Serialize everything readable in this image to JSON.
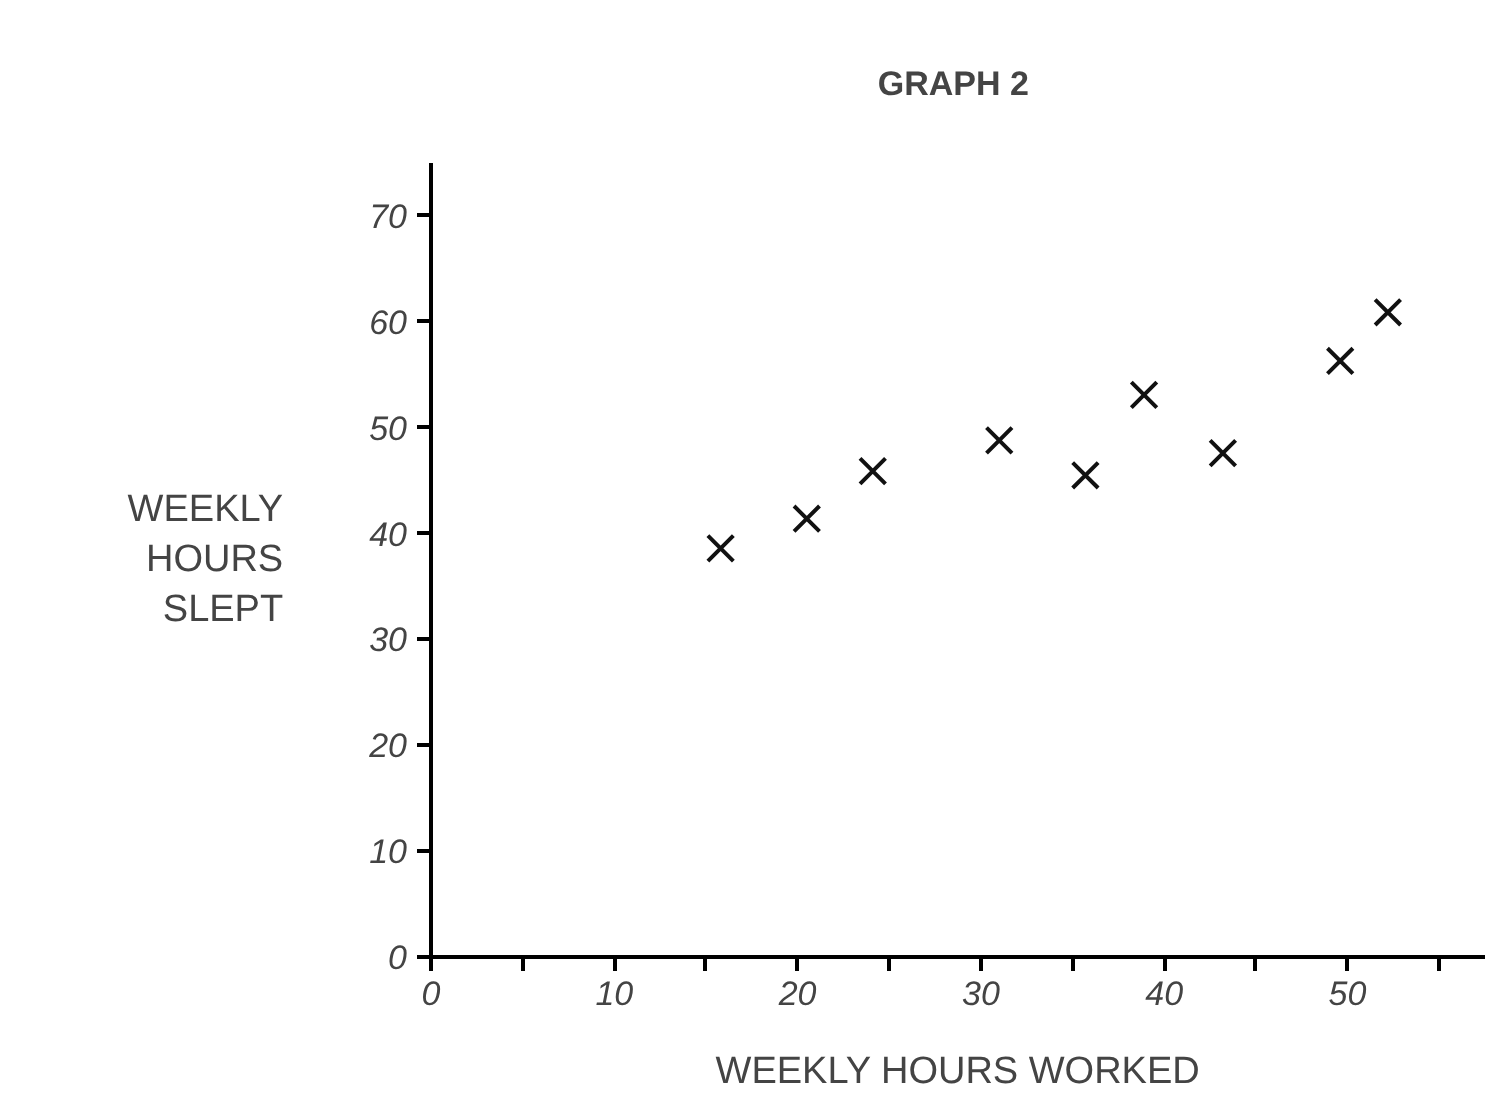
{
  "chart_data": {
    "type": "scatter",
    "title": "GRAPH  2",
    "xlabel": "WEEKLY HOURS WORKED",
    "ylabel": "WEEKLY\nHOURS\nSLEPT",
    "x": [
      15.8,
      20.5,
      24.1,
      31.0,
      35.7,
      38.9,
      43.2,
      49.6,
      52.2
    ],
    "values": [
      38.6,
      41.4,
      45.9,
      48.8,
      45.5,
      53.1,
      47.6,
      56.3,
      60.9
    ],
    "color": "#111111",
    "marker": "cross",
    "xlim": [
      0,
      57.5
    ],
    "ylim": [
      0,
      75
    ],
    "xticks": [
      0,
      {
        "value": 5,
        "label": null
      },
      10,
      {
        "value": 15,
        "label": null
      },
      20,
      {
        "value": 25,
        "label": null
      },
      30,
      {
        "value": 35,
        "label": null
      },
      40,
      {
        "value": 45,
        "label": null
      },
      50,
      {
        "value": 55,
        "label": null
      }
    ],
    "yticks": [
      0,
      10,
      20,
      30,
      40,
      50,
      60,
      70
    ],
    "grid": false
  }
}
